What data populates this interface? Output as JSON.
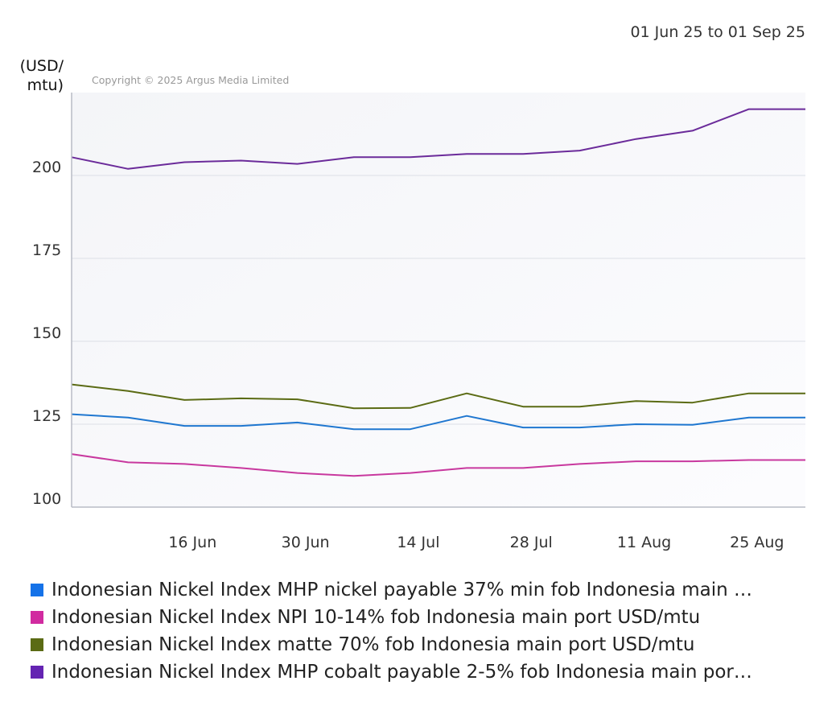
{
  "chart_data": {
    "type": "line",
    "date_range": "01 Jun 25 to 01 Sep 25",
    "ylabel_line1": "(USD/",
    "ylabel_line2": "mtu)",
    "copyright": "Copyright © 2025 Argus Media Limited",
    "x": [
      "2025-06-02",
      "2025-06-09",
      "2025-06-16",
      "2025-06-23",
      "2025-06-30",
      "2025-07-07",
      "2025-07-14",
      "2025-07-21",
      "2025-07-28",
      "2025-08-04",
      "2025-08-11",
      "2025-08-18",
      "2025-08-25",
      "2025-09-01"
    ],
    "xticks": [
      {
        "date": "2025-06-16",
        "label": "16 Jun"
      },
      {
        "date": "2025-06-30",
        "label": "30 Jun"
      },
      {
        "date": "2025-07-14",
        "label": "14 Jul"
      },
      {
        "date": "2025-07-28",
        "label": "28 Jul"
      },
      {
        "date": "2025-08-11",
        "label": "11 Aug"
      },
      {
        "date": "2025-08-25",
        "label": "25 Aug"
      }
    ],
    "yticks": [
      {
        "value": 100,
        "label": "100"
      },
      {
        "value": 125,
        "label": "125"
      },
      {
        "value": 150,
        "label": "150"
      },
      {
        "value": 175,
        "label": "175"
      },
      {
        "value": 200,
        "label": "200"
      }
    ],
    "xlim": [
      "2025-06-02",
      "2025-09-01"
    ],
    "ylim": [
      100,
      225
    ],
    "grid": true,
    "legend_position": "bottom",
    "series": [
      {
        "name": "Indonesian Nickel Index MHP nickel payable 37% min fob Indonesia main …",
        "color": "#1f77d0",
        "swatch": "#1572e8",
        "values": [
          128.0,
          127.0,
          124.5,
          124.5,
          125.5,
          123.5,
          123.5,
          127.5,
          124.0,
          124.0,
          125.0,
          124.8,
          127.0,
          127.0
        ]
      },
      {
        "name": "Indonesian Nickel Index NPI 10-14% fob Indonesia main port USD/mtu",
        "color": "#c8389e",
        "swatch": "#d12ba0",
        "values": [
          116.0,
          113.5,
          113.0,
          111.8,
          110.3,
          109.4,
          110.3,
          111.8,
          111.8,
          113.0,
          113.8,
          113.8,
          114.2,
          114.2
        ]
      },
      {
        "name": "Indonesian Nickel Index matte 70% fob Indonesia main port USD/mtu",
        "color": "#5b6b14",
        "swatch": "#5b6b14",
        "values": [
          137.0,
          135.0,
          132.3,
          132.8,
          132.5,
          129.8,
          129.9,
          134.3,
          130.3,
          130.3,
          132.0,
          131.5,
          134.3,
          134.3
        ]
      },
      {
        "name": "Indonesian Nickel Index MHP cobalt payable 2-5% fob Indonesia main por…",
        "color": "#6b2b9a",
        "swatch": "#6424b2",
        "values": [
          205.5,
          202.0,
          204.0,
          204.5,
          203.5,
          205.5,
          205.5,
          206.5,
          206.5,
          207.5,
          211.0,
          213.5,
          220.0,
          220.0
        ]
      }
    ]
  }
}
